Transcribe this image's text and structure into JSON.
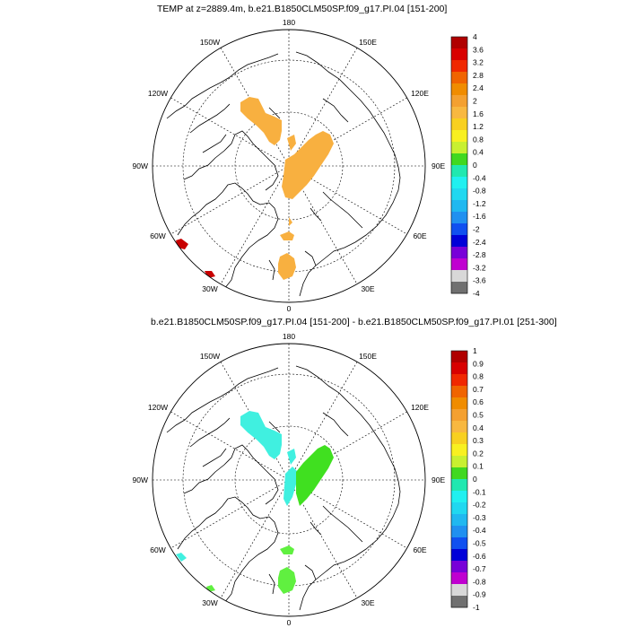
{
  "panels": [
    {
      "title": "TEMP at z=2889.4m, b.e21.B1850CLM50SP.f09_g17.PI.04 [151-200]",
      "lon_labels": {
        "top": "180",
        "bottom": "0",
        "left": "90W",
        "right": "90E",
        "ul1": "150W",
        "ul2": "120W",
        "ur1": "150E",
        "ur2": "120E",
        "ll1": "60W",
        "ll2": "30W",
        "lr1": "60E",
        "lr2": "30E"
      },
      "colorbar": {
        "labels": [
          "4",
          "3.6",
          "3.2",
          "2.8",
          "2.4",
          "2",
          "1.6",
          "1.2",
          "0.8",
          "0.4",
          "0",
          "-0.4",
          "-0.8",
          "-1.2",
          "-1.6",
          "-2",
          "-2.4",
          "-2.8",
          "-3.2",
          "-3.6",
          "-4"
        ],
        "colors": [
          "#b00000",
          "#d80000",
          "#f02800",
          "#f06400",
          "#f08c00",
          "#f4a030",
          "#f8b840",
          "#f8d020",
          "#f8f020",
          "#c8f030",
          "#40d820",
          "#20e8b0",
          "#20f0f0",
          "#20d8f0",
          "#20b8f0",
          "#2090f0",
          "#1050f0",
          "#0000d8",
          "#7800d8",
          "#c000d0",
          "#d8d8d8",
          "#707070"
        ]
      }
    },
    {
      "title": "b.e21.B1850CLM50SP.f09_g17.PI.04 [151-200] - b.e21.B1850CLM50SP.f09_g17.PI.01 [251-300]",
      "lon_labels": {
        "top": "180",
        "bottom": "0",
        "left": "90W",
        "right": "90E",
        "ul1": "150W",
        "ul2": "120W",
        "ur1": "150E",
        "ur2": "120E",
        "ll1": "60W",
        "ll2": "30W",
        "lr1": "60E",
        "lr2": "30E"
      },
      "colorbar": {
        "labels": [
          "1",
          "0.9",
          "0.8",
          "0.7",
          "0.6",
          "0.5",
          "0.4",
          "0.3",
          "0.2",
          "0.1",
          "0",
          "-0.1",
          "-0.2",
          "-0.3",
          "-0.4",
          "-0.5",
          "-0.6",
          "-0.7",
          "-0.8",
          "-0.9",
          "-1"
        ],
        "colors": [
          "#b00000",
          "#d80000",
          "#f02800",
          "#f06400",
          "#f08c00",
          "#f4a030",
          "#f8b840",
          "#f8d020",
          "#f8f020",
          "#c8f030",
          "#40d820",
          "#20e8b0",
          "#20f0f0",
          "#20d8f0",
          "#20b8f0",
          "#2090f0",
          "#1050f0",
          "#0000d8",
          "#7800d8",
          "#c000d0",
          "#d8d8d8",
          "#707070"
        ]
      }
    }
  ],
  "region_colors": {
    "panel1_anomaly": "#f8b040",
    "panel1_cold": "#c80000",
    "panel2_cyan": "#40f0e0",
    "panel2_green": "#40e020",
    "panel2_lime": "#60f040"
  }
}
